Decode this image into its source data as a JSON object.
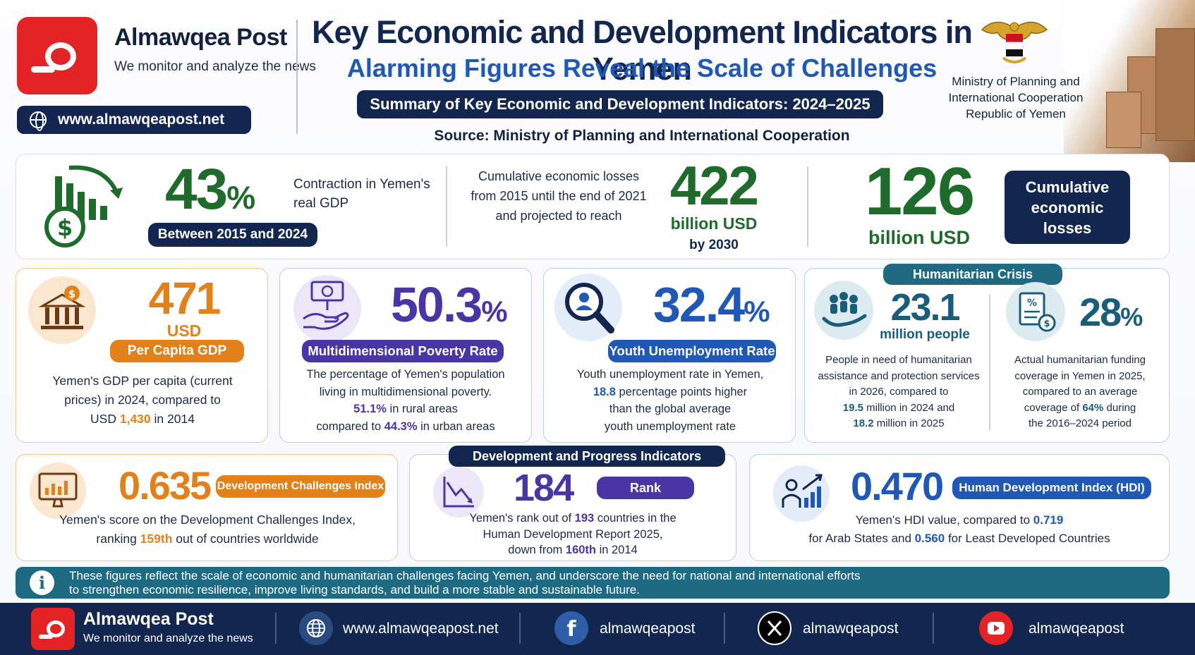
{
  "header": {
    "brand": "Almawqea Post",
    "tagline": "We monitor and analyze the news",
    "website": "www.almawqeapost.net",
    "title": "Key Economic and Development Indicators in Yemen",
    "subtitle": "Alarming Figures Reveal the Scale of Challenges",
    "summary": "Summary of Key Economic and Development Indicators: 2024–2025",
    "source": "Source: Ministry of Planning and International Cooperation",
    "ministry_line1": "Ministry of Planning and",
    "ministry_line2": "International Cooperation",
    "ministry_line3": "Republic of Yemen",
    "emblem_icon": "yemen-eagle-emblem"
  },
  "gdp": {
    "value": "43",
    "unit": "%",
    "desc_line1": "Contraction in Yemen's",
    "desc_line2": "real GDP",
    "period": "Between 2015 and 2024",
    "icon": "declining-bar-chart-dollar-icon"
  },
  "losses": {
    "text_line1": "Cumulative economic losses",
    "text_line2": "from 2015 until the end of 2021",
    "text_line3": "and projected to reach",
    "value_2030": "422",
    "unit_2030": "billion USD",
    "by_2030": "by 2030",
    "value_cum": "126",
    "unit_cum": "billion USD",
    "label_line1": "Cumulative",
    "label_line2": "economic",
    "label_line3": "losses"
  },
  "per_capita": {
    "value": "471",
    "unit": "USD",
    "label": "Per Capita GDP",
    "desc_line1": "Yemen's GDP per capita (current",
    "desc_line2": "prices) in 2024, compared to",
    "desc_pre": "USD ",
    "desc_hl": "1,430",
    "desc_post": " in 2014",
    "icon": "bank-dollar-icon"
  },
  "poverty": {
    "value": "50.3",
    "unit": "%",
    "label": "Multidimensional Poverty Rate",
    "desc_line1": "The percentage of Yemen's population",
    "desc_line2": "living in multidimensional poverty.",
    "rural_hl": "51.1%",
    "rural_text": " in rural areas",
    "urban_pre": "compared to ",
    "urban_hl": "44.3%",
    "urban_text": " in urban areas",
    "icon": "hand-money-icon"
  },
  "youth": {
    "value": "32.4",
    "unit": "%",
    "label": "Youth Unemployment Rate",
    "desc_line1": "Youth unemployment rate in Yemen,",
    "desc_hl": "18.8",
    "desc_line2": " percentage points higher",
    "desc_line3": "than the global average",
    "desc_line4": "youth unemployment rate",
    "icon": "magnifier-person-icon"
  },
  "humanitarian": {
    "header": "Humanitarian Crisis",
    "people_value": "23.1",
    "people_unit": "million people",
    "people_desc1": "People in need of humanitarian",
    "people_desc2": "assistance and protection services",
    "people_desc3": "in 2026, compared to",
    "people_hl1": "19.5",
    "people_desc4": " million in 2024 and",
    "people_hl2": "18.2",
    "people_desc5": " million in 2025",
    "funding_value": "28",
    "funding_unit": "%",
    "funding_desc1": "Actual humanitarian funding",
    "funding_desc2": "coverage in Yemen in 2025,",
    "funding_desc3": "compared to an average",
    "funding_pre": "coverage of ",
    "funding_hl": "64%",
    "funding_post": " during",
    "funding_desc5": "the 2016–2024 period",
    "people_icon": "people-hand-icon",
    "funding_icon": "document-coins-icon"
  },
  "dci": {
    "value": "0.635",
    "label": "Development Challenges Index",
    "desc_line1": "Yemen's score on the Development Challenges Index,",
    "desc_pre": "ranking ",
    "desc_hl": "159th",
    "desc_post": " out of countries worldwide",
    "icon": "monitor-chart-icon"
  },
  "rank": {
    "header": "Development and Progress Indicators",
    "value": "184",
    "label": "Rank",
    "desc_pre": "Yemen's rank out of ",
    "desc_hl1": "193",
    "desc_post": " countries in the",
    "desc_line2": "Human Development Report 2025,",
    "desc_pre3": "down from ",
    "desc_hl2": "160th",
    "desc_post3": " in 2014",
    "icon": "declining-line-chart-icon"
  },
  "hdi": {
    "value": "0.470",
    "label": "Human Development Index (HDI)",
    "desc_pre": "Yemen's HDI value, compared to ",
    "desc_hl1": "0.719",
    "desc_pre2": "for Arab States and ",
    "desc_hl2": "0.560",
    "desc_post2": " for Least Developed Countries",
    "icon": "person-growth-chart-icon"
  },
  "banner": {
    "line1": "These figures reflect the scale of economic and humanitarian challenges facing Yemen, and underscore the need for national and international efforts",
    "line2": "to strengthen economic resilience, improve living standards, and build a more stable and sustainable future.",
    "icon": "info-icon"
  },
  "footer": {
    "brand": "Almawqea Post",
    "tagline": "We monitor and analyze the news",
    "website": "www.almawqeapost.net",
    "facebook": "almawqeapost",
    "x": "almawqeapost",
    "youtube": "almawqeapost"
  },
  "colors": {
    "navy": "#13264f",
    "green": "#1f6b2c",
    "orange": "#e2801a",
    "purple": "#4a35a5",
    "teal": "#1e6a82",
    "red": "#e32326"
  }
}
